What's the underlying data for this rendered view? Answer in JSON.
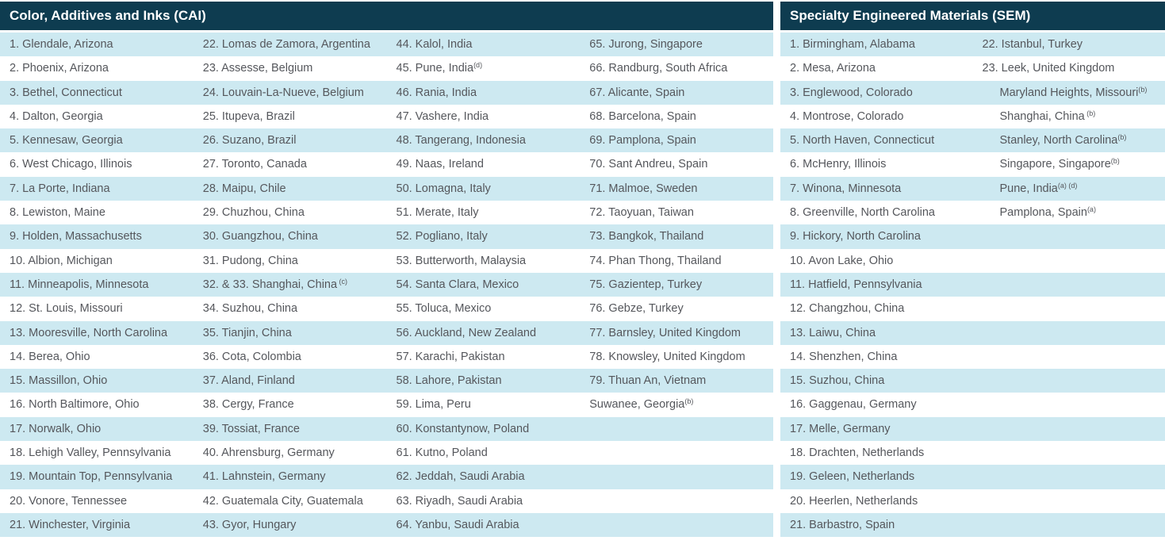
{
  "colors": {
    "header_bg": "#0e3c50",
    "header_text": "#ffffff",
    "stripe_blue": "#cde9f1",
    "cell_text": "#55575c",
    "page_bg": "#ffffff"
  },
  "left_table": {
    "title": "Color, Additives and Inks (CAI)",
    "row_count": 21,
    "columns": [
      [
        {
          "t": "1. Glendale, Arizona"
        },
        {
          "t": "2. Phoenix, Arizona"
        },
        {
          "t": "3. Bethel, Connecticut"
        },
        {
          "t": "4. Dalton, Georgia"
        },
        {
          "t": "5. Kennesaw, Georgia"
        },
        {
          "t": "6. West Chicago, Illinois"
        },
        {
          "t": "7. La Porte, Indiana"
        },
        {
          "t": "8. Lewiston, Maine"
        },
        {
          "t": "9. Holden, Massachusetts"
        },
        {
          "t": "10. Albion, Michigan"
        },
        {
          "t": "11. Minneapolis, Minnesota"
        },
        {
          "t": "12. St. Louis, Missouri"
        },
        {
          "t": "13. Mooresville, North Carolina"
        },
        {
          "t": "14. Berea, Ohio"
        },
        {
          "t": "15. Massillon, Ohio"
        },
        {
          "t": "16. North Baltimore, Ohio"
        },
        {
          "t": "17. Norwalk, Ohio"
        },
        {
          "t": "18. Lehigh Valley, Pennsylvania"
        },
        {
          "t": "19. Mountain Top, Pennsylvania"
        },
        {
          "t": "20. Vonore, Tennessee"
        },
        {
          "t": "21. Winchester, Virginia"
        }
      ],
      [
        {
          "t": "22. Lomas de Zamora, Argentina"
        },
        {
          "t": "23. Assesse, Belgium"
        },
        {
          "t": "24. Louvain-La-Nueve, Belgium"
        },
        {
          "t": "25. Itupeva, Brazil"
        },
        {
          "t": "26. Suzano, Brazil"
        },
        {
          "t": "27. Toronto, Canada"
        },
        {
          "t": "28. Maipu, Chile"
        },
        {
          "t": "29. Chuzhou, China"
        },
        {
          "t": "30. Guangzhou, China"
        },
        {
          "t": "31. Pudong, China"
        },
        {
          "t": "32. & 33. Shanghai, China",
          "sup": " (c)"
        },
        {
          "t": "34. Suzhou, China"
        },
        {
          "t": "35. Tianjin, China"
        },
        {
          "t": "36. Cota, Colombia"
        },
        {
          "t": "37. Aland, Finland"
        },
        {
          "t": "38. Cergy, France"
        },
        {
          "t": "39. Tossiat, France"
        },
        {
          "t": "40. Ahrensburg, Germany"
        },
        {
          "t": "41. Lahnstein, Germany"
        },
        {
          "t": "42. Guatemala City, Guatemala"
        },
        {
          "t": "43. Gyor, Hungary"
        }
      ],
      [
        {
          "t": "44. Kalol, India"
        },
        {
          "t": "45. Pune, India",
          "sup": "(d)"
        },
        {
          "t": "46. Rania, India"
        },
        {
          "t": "47. Vashere, India"
        },
        {
          "t": "48. Tangerang, Indonesia"
        },
        {
          "t": "49. Naas, Ireland"
        },
        {
          "t": "50. Lomagna, Italy"
        },
        {
          "t": "51. Merate, Italy"
        },
        {
          "t": "52. Pogliano, Italy"
        },
        {
          "t": "53. Butterworth, Malaysia"
        },
        {
          "t": "54. Santa Clara, Mexico"
        },
        {
          "t": "55. Toluca, Mexico"
        },
        {
          "t": "56. Auckland, New Zealand"
        },
        {
          "t": "57. Karachi, Pakistan"
        },
        {
          "t": "58. Lahore, Pakistan"
        },
        {
          "t": "59. Lima, Peru"
        },
        {
          "t": "60. Konstantynow, Poland"
        },
        {
          "t": "61. Kutno, Poland"
        },
        {
          "t": "62. Jeddah, Saudi Arabia"
        },
        {
          "t": "63. Riyadh, Saudi Arabia"
        },
        {
          "t": "64. Yanbu, Saudi Arabia"
        }
      ],
      [
        {
          "t": "65. Jurong, Singapore"
        },
        {
          "t": "66. Randburg, South Africa"
        },
        {
          "t": "67. Alicante, Spain"
        },
        {
          "t": "68. Barcelona, Spain"
        },
        {
          "t": "69. Pamplona, Spain"
        },
        {
          "t": "70. Sant Andreu, Spain"
        },
        {
          "t": "71. Malmoe, Sweden"
        },
        {
          "t": "72. Taoyuan, Taiwan"
        },
        {
          "t": "73. Bangkok, Thailand"
        },
        {
          "t": "74. Phan Thong, Thailand"
        },
        {
          "t": "75. Gazientep, Turkey"
        },
        {
          "t": "76. Gebze, Turkey"
        },
        {
          "t": "77. Barnsley, United Kingdom"
        },
        {
          "t": "78. Knowsley, United Kingdom"
        },
        {
          "t": "79. Thuan An, Vietnam"
        },
        {
          "t": "Suwanee, Georgia",
          "sup": "(b)"
        }
      ]
    ]
  },
  "right_table": {
    "title": "Specialty Engineered Materials (SEM)",
    "row_count": 21,
    "columns": [
      [
        {
          "t": "1. Birmingham, Alabama"
        },
        {
          "t": "2. Mesa, Arizona"
        },
        {
          "t": "3. Englewood, Colorado"
        },
        {
          "t": "4. Montrose, Colorado"
        },
        {
          "t": "5. North Haven, Connecticut"
        },
        {
          "t": "6. McHenry, Illinois"
        },
        {
          "t": "7. Winona, Minnesota"
        },
        {
          "t": "8. Greenville, North Carolina"
        },
        {
          "t": "9. Hickory, North Carolina"
        },
        {
          "t": "10. Avon Lake, Ohio"
        },
        {
          "t": "11. Hatfield, Pennsylvania"
        },
        {
          "t": "12. Changzhou, China"
        },
        {
          "t": "13. Laiwu, China"
        },
        {
          "t": "14. Shenzhen, China"
        },
        {
          "t": "15. Suzhou, China"
        },
        {
          "t": "16. Gaggenau, Germany"
        },
        {
          "t": "17. Melle, Germany"
        },
        {
          "t": "18. Drachten, Netherlands"
        },
        {
          "t": "19. Geleen, Netherlands"
        },
        {
          "t": "20. Heerlen, Netherlands"
        },
        {
          "t": "21. Barbastro, Spain"
        }
      ],
      [
        {
          "t": "22. Istanbul, Turkey"
        },
        {
          "t": "23. Leek, United Kingdom"
        },
        {
          "t": "Maryland Heights, Missouri",
          "sup": "(b)",
          "indent": true
        },
        {
          "t": "Shanghai, China",
          "sup": " (b)",
          "indent": true
        },
        {
          "t": "Stanley, North Carolina",
          "sup": "(b)",
          "indent": true
        },
        {
          "t": "Singapore, Singapore",
          "sup": "(b)",
          "indent": true
        },
        {
          "t": "Pune, India",
          "sup": "(a) (d)",
          "indent": true
        },
        {
          "t": "Pamplona, Spain",
          "sup": "(a)",
          "indent": true
        }
      ]
    ]
  }
}
